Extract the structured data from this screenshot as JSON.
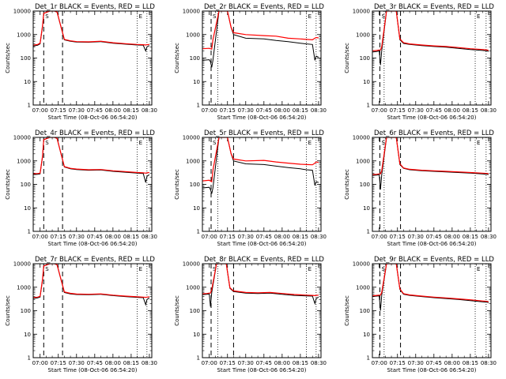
{
  "chart_data": [
    {
      "type": "line",
      "title": "Det_1r BLACK = Events, RED = LLD",
      "xlabel": "Start Time (08-Oct-06 06:54:20)",
      "ylabel": "Counts/sec",
      "yscale": "log",
      "ylim": [
        1,
        10000
      ],
      "x_ticks": [
        "07:00",
        "07:15",
        "07:30",
        "07:45",
        "08:00",
        "08:15",
        "08:30"
      ],
      "markers": [
        "S",
        "E"
      ],
      "series": [
        {
          "color": "#000000",
          "x": [
            "06:54",
            "06:58",
            "07:00",
            "07:02",
            "07:03",
            "07:08",
            "07:12",
            "07:14",
            "07:20",
            "07:25",
            "07:30",
            "07:40",
            "07:50",
            "08:00",
            "08:10",
            "08:20",
            "08:25",
            "08:27",
            "08:28",
            "08:30"
          ],
          "y": [
            320,
            350,
            400,
            2200,
            8000,
            10000,
            10000,
            9000,
            600,
            520,
            480,
            470,
            500,
            430,
            390,
            360,
            350,
            200,
            300,
            340
          ]
        },
        {
          "color": "#ff0000",
          "x": [
            "06:54",
            "06:58",
            "07:00",
            "07:02",
            "07:03",
            "07:08",
            "07:12",
            "07:14",
            "07:20",
            "07:25",
            "07:30",
            "07:40",
            "07:50",
            "08:00",
            "08:10",
            "08:20",
            "08:25",
            "08:27",
            "08:28",
            "08:30"
          ],
          "y": [
            350,
            380,
            430,
            2400,
            8000,
            10000,
            10000,
            9000,
            620,
            540,
            500,
            490,
            520,
            450,
            410,
            380,
            370,
            360,
            370,
            380
          ]
        }
      ]
    },
    {
      "type": "line",
      "title": "Det_2r BLACK = Events, RED = LLD",
      "xlabel": "Start Time (08-Oct-06 06:54:20)",
      "ylabel": "Counts/sec",
      "yscale": "log",
      "ylim": [
        1,
        10000
      ],
      "x_ticks": [
        "07:00",
        "07:15",
        "07:30",
        "07:45",
        "08:00",
        "08:15",
        "08:30"
      ],
      "markers": [
        "S",
        "E"
      ],
      "series": [
        {
          "color": "#000000",
          "x": [
            "06:54",
            "07:00",
            "07:01",
            "07:02",
            "07:03",
            "07:08",
            "07:12",
            "07:15",
            "07:18",
            "07:20",
            "07:30",
            "07:45",
            "07:55",
            "08:05",
            "08:15",
            "08:20",
            "08:25",
            "08:27",
            "08:28",
            "08:30"
          ],
          "y": [
            80,
            85,
            70,
            40,
            80,
            10000,
            10000,
            10000,
            2000,
            1000,
            700,
            650,
            560,
            500,
            430,
            400,
            380,
            80,
            120,
            110
          ]
        },
        {
          "color": "#ff0000",
          "x": [
            "06:54",
            "07:00",
            "07:01",
            "07:02",
            "07:03",
            "07:08",
            "07:12",
            "07:15",
            "07:18",
            "07:20",
            "07:30",
            "07:45",
            "07:55",
            "08:05",
            "08:15",
            "08:20",
            "08:25",
            "08:27",
            "08:28",
            "08:30"
          ],
          "y": [
            250,
            260,
            250,
            240,
            600,
            10000,
            10000,
            10000,
            2000,
            1200,
            1000,
            900,
            850,
            700,
            650,
            620,
            600,
            700,
            750,
            720
          ]
        }
      ]
    },
    {
      "type": "line",
      "title": "Det_3r BLACK = Events, RED = LLD",
      "xlabel": "Start Time (08-Oct-06 06:54:20)",
      "ylabel": "Counts/sec",
      "yscale": "log",
      "ylim": [
        1,
        10000
      ],
      "x_ticks": [
        "07:00",
        "07:15",
        "07:30",
        "07:45",
        "08:00",
        "08:15",
        "08:30"
      ],
      "markers": [
        "S",
        "E"
      ],
      "series": [
        {
          "color": "#000000",
          "x": [
            "06:54",
            "06:58",
            "07:00",
            "07:01",
            "07:02",
            "07:06",
            "07:12",
            "07:14",
            "07:17",
            "07:20",
            "07:25",
            "07:35",
            "07:45",
            "07:55",
            "08:05",
            "08:15",
            "08:25",
            "08:29",
            "08:30"
          ],
          "y": [
            180,
            190,
            200,
            50,
            200,
            10000,
            10000,
            10000,
            600,
            420,
            380,
            340,
            310,
            290,
            260,
            230,
            210,
            200,
            190
          ]
        },
        {
          "color": "#ff0000",
          "x": [
            "06:54",
            "06:58",
            "07:00",
            "07:01",
            "07:02",
            "07:06",
            "07:12",
            "07:14",
            "07:17",
            "07:20",
            "07:25",
            "07:35",
            "07:45",
            "07:55",
            "08:05",
            "08:15",
            "08:25",
            "08:29",
            "08:30"
          ],
          "y": [
            200,
            210,
            220,
            220,
            300,
            10000,
            10000,
            10000,
            650,
            450,
            400,
            360,
            330,
            310,
            280,
            250,
            230,
            220,
            210
          ]
        }
      ]
    },
    {
      "type": "line",
      "title": "Det_4r BLACK = Events, RED = LLD",
      "xlabel": "Start Time (08-Oct-06 06:54:20)",
      "ylabel": "Counts/sec",
      "yscale": "log",
      "ylim": [
        1,
        10000
      ],
      "x_ticks": [
        "07:00",
        "07:15",
        "07:30",
        "07:45",
        "08:00",
        "08:15",
        "08:30"
      ],
      "markers": [
        "S",
        "E"
      ],
      "series": [
        {
          "color": "#000000",
          "x": [
            "06:54",
            "06:58",
            "07:00",
            "07:02",
            "07:03",
            "07:08",
            "07:12",
            "07:14",
            "07:20",
            "07:25",
            "07:30",
            "07:40",
            "07:50",
            "08:00",
            "08:10",
            "08:20",
            "08:25",
            "08:27",
            "08:28",
            "08:30"
          ],
          "y": [
            260,
            270,
            280,
            1500,
            8000,
            10000,
            10000,
            9000,
            550,
            460,
            430,
            400,
            410,
            360,
            330,
            300,
            290,
            120,
            220,
            260
          ]
        },
        {
          "color": "#ff0000",
          "x": [
            "06:54",
            "06:58",
            "07:00",
            "07:02",
            "07:03",
            "07:08",
            "07:12",
            "07:14",
            "07:20",
            "07:25",
            "07:30",
            "07:40",
            "07:50",
            "08:00",
            "08:10",
            "08:20",
            "08:25",
            "08:27",
            "08:28",
            "08:30"
          ],
          "y": [
            280,
            290,
            300,
            1600,
            8000,
            10000,
            10000,
            9000,
            570,
            480,
            450,
            420,
            430,
            380,
            350,
            320,
            310,
            300,
            310,
            320
          ]
        }
      ]
    },
    {
      "type": "line",
      "title": "Det_5r BLACK = Events, RED = LLD",
      "xlabel": "Start Time (08-Oct-06 06:54:20)",
      "ylabel": "Counts/sec",
      "yscale": "log",
      "ylim": [
        1,
        10000
      ],
      "x_ticks": [
        "07:00",
        "07:15",
        "07:30",
        "07:45",
        "08:00",
        "08:15",
        "08:30"
      ],
      "markers": [
        "S",
        "E"
      ],
      "series": [
        {
          "color": "#000000",
          "x": [
            "06:54",
            "07:00",
            "07:01",
            "07:02",
            "07:03",
            "07:08",
            "07:12",
            "07:15",
            "07:18",
            "07:20",
            "07:30",
            "07:45",
            "07:55",
            "08:05",
            "08:15",
            "08:20",
            "08:25",
            "08:27",
            "08:28",
            "08:30"
          ],
          "y": [
            70,
            75,
            60,
            40,
            70,
            10000,
            10000,
            10000,
            2000,
            1000,
            750,
            700,
            600,
            520,
            460,
            420,
            400,
            90,
            130,
            120
          ]
        },
        {
          "color": "#ff0000",
          "x": [
            "06:54",
            "07:00",
            "07:01",
            "07:02",
            "07:03",
            "07:08",
            "07:12",
            "07:15",
            "07:18",
            "07:20",
            "07:30",
            "07:45",
            "07:55",
            "08:05",
            "08:15",
            "08:20",
            "08:25",
            "08:27",
            "08:28",
            "08:30"
          ],
          "y": [
            140,
            150,
            140,
            130,
            400,
            10000,
            10000,
            10000,
            2000,
            1200,
            1000,
            1050,
            900,
            800,
            720,
            700,
            680,
            800,
            900,
            850
          ]
        }
      ]
    },
    {
      "type": "line",
      "title": "Det_6r BLACK = Events, RED = LLD",
      "xlabel": "Start Time (08-Oct-06 06:54:20)",
      "ylabel": "Counts/sec",
      "yscale": "log",
      "ylim": [
        1,
        10000
      ],
      "x_ticks": [
        "07:00",
        "07:15",
        "07:30",
        "07:45",
        "08:00",
        "08:15",
        "08:30"
      ],
      "markers": [
        "S",
        "E"
      ],
      "series": [
        {
          "color": "#000000",
          "x": [
            "06:54",
            "06:58",
            "07:00",
            "07:01",
            "07:02",
            "07:06",
            "07:12",
            "07:14",
            "07:17",
            "07:20",
            "07:25",
            "07:35",
            "07:45",
            "07:55",
            "08:05",
            "08:15",
            "08:25",
            "08:29",
            "08:30"
          ],
          "y": [
            240,
            250,
            260,
            60,
            250,
            10000,
            10000,
            10000,
            700,
            480,
            420,
            380,
            360,
            340,
            320,
            300,
            280,
            270,
            260
          ]
        },
        {
          "color": "#ff0000",
          "x": [
            "06:54",
            "06:58",
            "07:00",
            "07:01",
            "07:02",
            "07:06",
            "07:12",
            "07:14",
            "07:17",
            "07:20",
            "07:25",
            "07:35",
            "07:45",
            "07:55",
            "08:05",
            "08:15",
            "08:25",
            "08:29",
            "08:30"
          ],
          "y": [
            260,
            270,
            280,
            280,
            380,
            10000,
            10000,
            10000,
            750,
            500,
            440,
            400,
            380,
            360,
            340,
            320,
            300,
            290,
            280
          ]
        }
      ]
    },
    {
      "type": "line",
      "title": "Det_7r BLACK = Events, RED = LLD",
      "xlabel": "Start Time (08-Oct-06 06:54:20)",
      "ylabel": "Counts/sec",
      "yscale": "log",
      "ylim": [
        1,
        10000
      ],
      "x_ticks": [
        "07:00",
        "07:15",
        "07:30",
        "07:45",
        "08:00",
        "08:15",
        "08:30"
      ],
      "markers": [
        "S",
        "E"
      ],
      "series": [
        {
          "color": "#000000",
          "x": [
            "06:54",
            "06:58",
            "07:00",
            "07:02",
            "07:03",
            "07:08",
            "07:12",
            "07:14",
            "07:20",
            "07:25",
            "07:30",
            "07:40",
            "07:50",
            "08:00",
            "08:10",
            "08:20",
            "08:25",
            "08:27",
            "08:28",
            "08:30"
          ],
          "y": [
            330,
            350,
            380,
            2000,
            8000,
            10000,
            10000,
            9000,
            600,
            520,
            490,
            480,
            500,
            440,
            400,
            370,
            360,
            180,
            300,
            350
          ]
        },
        {
          "color": "#ff0000",
          "x": [
            "06:54",
            "06:58",
            "07:00",
            "07:02",
            "07:03",
            "07:08",
            "07:12",
            "07:14",
            "07:20",
            "07:25",
            "07:30",
            "07:40",
            "07:50",
            "08:00",
            "08:10",
            "08:20",
            "08:25",
            "08:27",
            "08:28",
            "08:30"
          ],
          "y": [
            360,
            380,
            410,
            2200,
            8000,
            10000,
            10000,
            9000,
            630,
            550,
            510,
            500,
            520,
            460,
            420,
            390,
            380,
            370,
            380,
            390
          ]
        }
      ]
    },
    {
      "type": "line",
      "title": "Det_8r BLACK = Events, RED = LLD",
      "xlabel": "Start Time (08-Oct-06 06:54:20)",
      "ylabel": "Counts/sec",
      "yscale": "log",
      "ylim": [
        1,
        10000
      ],
      "x_ticks": [
        "07:00",
        "07:15",
        "07:30",
        "07:45",
        "08:00",
        "08:15",
        "08:30"
      ],
      "markers": [
        "S",
        "E"
      ],
      "series": [
        {
          "color": "#000000",
          "x": [
            "06:54",
            "06:58",
            "07:00",
            "07:01",
            "07:02",
            "07:06",
            "07:12",
            "07:14",
            "07:17",
            "07:20",
            "07:30",
            "07:40",
            "07:50",
            "08:00",
            "08:10",
            "08:20",
            "08:25",
            "08:27",
            "08:28",
            "08:30"
          ],
          "y": [
            480,
            500,
            520,
            150,
            600,
            10000,
            10000,
            10000,
            900,
            650,
            560,
            540,
            560,
            500,
            450,
            430,
            420,
            200,
            330,
            380
          ]
        },
        {
          "color": "#ff0000",
          "x": [
            "06:54",
            "06:58",
            "07:00",
            "07:01",
            "07:02",
            "07:06",
            "07:12",
            "07:14",
            "07:17",
            "07:20",
            "07:30",
            "07:40",
            "07:50",
            "08:00",
            "08:10",
            "08:20",
            "08:25",
            "08:27",
            "08:28",
            "08:30"
          ],
          "y": [
            520,
            540,
            560,
            560,
            800,
            10000,
            10000,
            10000,
            950,
            700,
            600,
            580,
            600,
            540,
            490,
            460,
            450,
            440,
            450,
            460
          ]
        }
      ]
    },
    {
      "type": "line",
      "title": "Det_9r BLACK = Events, RED = LLD",
      "xlabel": "Start Time (08-Oct-06 06:54:20)",
      "ylabel": "Counts/sec",
      "yscale": "log",
      "ylim": [
        1,
        10000
      ],
      "x_ticks": [
        "07:00",
        "07:15",
        "07:30",
        "07:45",
        "08:00",
        "08:15",
        "08:30"
      ],
      "markers": [
        "S",
        "E"
      ],
      "series": [
        {
          "color": "#000000",
          "x": [
            "06:54",
            "06:58",
            "07:00",
            "07:01",
            "07:02",
            "07:06",
            "07:12",
            "07:14",
            "07:17",
            "07:20",
            "07:25",
            "07:35",
            "07:45",
            "07:55",
            "08:05",
            "08:15",
            "08:25",
            "08:29",
            "08:30"
          ],
          "y": [
            400,
            420,
            430,
            100,
            450,
            10000,
            10000,
            10000,
            800,
            500,
            450,
            400,
            360,
            330,
            300,
            270,
            240,
            230,
            220
          ]
        },
        {
          "color": "#ff0000",
          "x": [
            "06:54",
            "06:58",
            "07:00",
            "07:01",
            "07:02",
            "07:06",
            "07:12",
            "07:14",
            "07:17",
            "07:20",
            "07:25",
            "07:35",
            "07:45",
            "07:55",
            "08:05",
            "08:15",
            "08:25",
            "08:29",
            "08:30"
          ],
          "y": [
            430,
            450,
            460,
            460,
            600,
            10000,
            10000,
            10000,
            850,
            530,
            470,
            420,
            380,
            350,
            320,
            290,
            260,
            250,
            240
          ]
        }
      ]
    }
  ]
}
